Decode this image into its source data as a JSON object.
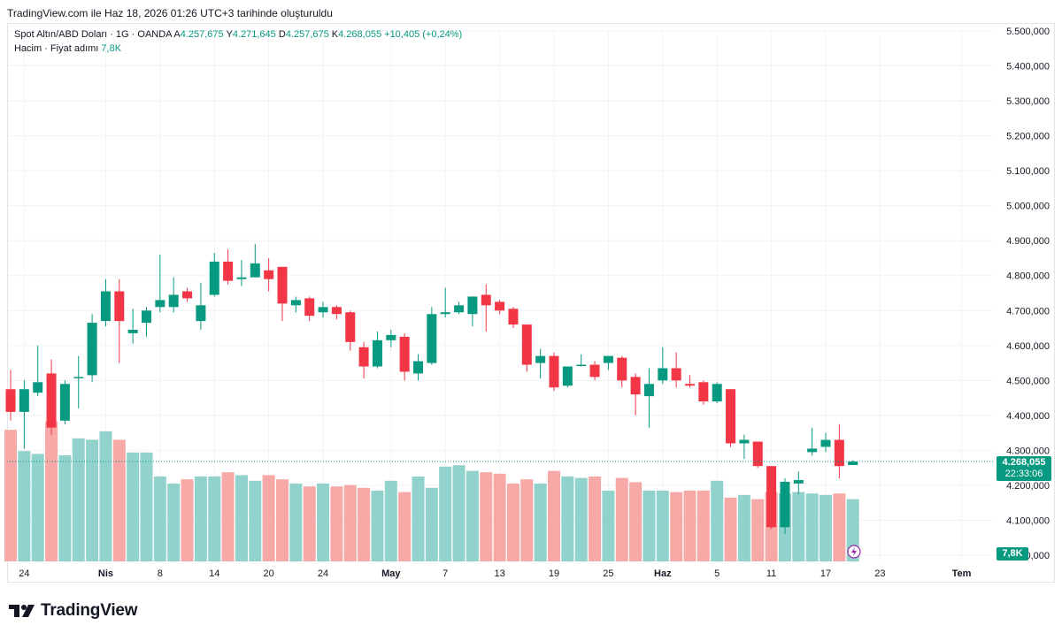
{
  "caption": "TradingView.com ile Haz 18, 2026 01:26 UTC+3 tarihinde oluşturuldu",
  "legend": {
    "symbol": "Spot Altın/ABD Doları · 1G · OANDA",
    "open_label": "A",
    "open": "4.257,675",
    "high_label": "Y",
    "high": "4.271,645",
    "low_label": "D",
    "low": "4.257,675",
    "close_label": "K",
    "close": "4.268,055",
    "change": "+10,405 (+0,24%)",
    "volume_label": "Hacim · Fiyat adımı",
    "volume_value": "7,8K"
  },
  "price_tag": {
    "price": "4.268,055",
    "countdown": "22:33:06"
  },
  "volume_tag": "7,8K",
  "logo_text": "TradingView",
  "colors": {
    "up": "#089981",
    "down": "#f23645",
    "up_volume": "#92d2cc",
    "down_volume": "#f7a9a7",
    "grid": "#f0f3fa"
  },
  "chart_data": {
    "type": "candlestick",
    "y_ticks": [
      "5.500,000",
      "5.400,000",
      "5.300,000",
      "5.200,000",
      "5.100,000",
      "5.000,000",
      "4.900,000",
      "4.800,000",
      "4.700,000",
      "4.600,000",
      "4.500,000",
      "4.400,000",
      "4.300,000",
      "4.200,000",
      "4.100,000",
      "4.000,000"
    ],
    "y_range": [
      4000,
      5500
    ],
    "x_ticks": [
      "24",
      "Nis",
      "8",
      "14",
      "20",
      "24",
      "May",
      "7",
      "13",
      "19",
      "25",
      "Haz",
      "5",
      "11",
      "17",
      "23",
      "Tem"
    ],
    "last_price": 4268.055,
    "candles": [
      {
        "o": 4475,
        "h": 4530,
        "l": 4385,
        "c": 4410
      },
      {
        "o": 4410,
        "h": 4500,
        "l": 4305,
        "c": 4475
      },
      {
        "o": 4465,
        "h": 4600,
        "l": 4455,
        "c": 4495
      },
      {
        "o": 4520,
        "h": 4560,
        "l": 4345,
        "c": 4365
      },
      {
        "o": 4385,
        "h": 4500,
        "l": 4375,
        "c": 4490
      },
      {
        "o": 4510,
        "h": 4570,
        "l": 4420,
        "c": 4510
      },
      {
        "o": 4515,
        "h": 4690,
        "l": 4495,
        "c": 4665
      },
      {
        "o": 4670,
        "h": 4790,
        "l": 4655,
        "c": 4755
      },
      {
        "o": 4755,
        "h": 4790,
        "l": 4550,
        "c": 4670
      },
      {
        "o": 4635,
        "h": 4705,
        "l": 4605,
        "c": 4645
      },
      {
        "o": 4665,
        "h": 4710,
        "l": 4625,
        "c": 4700
      },
      {
        "o": 4710,
        "h": 4860,
        "l": 4695,
        "c": 4730
      },
      {
        "o": 4710,
        "h": 4795,
        "l": 4695,
        "c": 4745
      },
      {
        "o": 4755,
        "h": 4765,
        "l": 4725,
        "c": 4735
      },
      {
        "o": 4670,
        "h": 4780,
        "l": 4645,
        "c": 4715
      },
      {
        "o": 4745,
        "h": 4865,
        "l": 4740,
        "c": 4840
      },
      {
        "o": 4840,
        "h": 4875,
        "l": 4775,
        "c": 4785
      },
      {
        "o": 4790,
        "h": 4845,
        "l": 4770,
        "c": 4795
      },
      {
        "o": 4795,
        "h": 4890,
        "l": 4795,
        "c": 4835
      },
      {
        "o": 4815,
        "h": 4850,
        "l": 4755,
        "c": 4790
      },
      {
        "o": 4825,
        "h": 4825,
        "l": 4670,
        "c": 4720
      },
      {
        "o": 4715,
        "h": 4740,
        "l": 4695,
        "c": 4730
      },
      {
        "o": 4735,
        "h": 4740,
        "l": 4670,
        "c": 4685
      },
      {
        "o": 4695,
        "h": 4725,
        "l": 4680,
        "c": 4710
      },
      {
        "o": 4710,
        "h": 4715,
        "l": 4675,
        "c": 4690
      },
      {
        "o": 4695,
        "h": 4700,
        "l": 4585,
        "c": 4610
      },
      {
        "o": 4595,
        "h": 4610,
        "l": 4505,
        "c": 4540
      },
      {
        "o": 4540,
        "h": 4640,
        "l": 4535,
        "c": 4615
      },
      {
        "o": 4615,
        "h": 4645,
        "l": 4595,
        "c": 4630
      },
      {
        "o": 4625,
        "h": 4635,
        "l": 4500,
        "c": 4525
      },
      {
        "o": 4520,
        "h": 4575,
        "l": 4500,
        "c": 4555
      },
      {
        "o": 4550,
        "h": 4710,
        "l": 4545,
        "c": 4690
      },
      {
        "o": 4690,
        "h": 4765,
        "l": 4680,
        "c": 4695
      },
      {
        "o": 4695,
        "h": 4725,
        "l": 4690,
        "c": 4715
      },
      {
        "o": 4690,
        "h": 4740,
        "l": 4655,
        "c": 4740
      },
      {
        "o": 4745,
        "h": 4775,
        "l": 4640,
        "c": 4715
      },
      {
        "o": 4725,
        "h": 4730,
        "l": 4690,
        "c": 4700
      },
      {
        "o": 4705,
        "h": 4710,
        "l": 4650,
        "c": 4660
      },
      {
        "o": 4660,
        "h": 4660,
        "l": 4525,
        "c": 4545
      },
      {
        "o": 4550,
        "h": 4590,
        "l": 4505,
        "c": 4570
      },
      {
        "o": 4570,
        "h": 4580,
        "l": 4470,
        "c": 4480
      },
      {
        "o": 4485,
        "h": 4540,
        "l": 4480,
        "c": 4540
      },
      {
        "o": 4545,
        "h": 4575,
        "l": 4540,
        "c": 4545
      },
      {
        "o": 4545,
        "h": 4555,
        "l": 4500,
        "c": 4510
      },
      {
        "o": 4550,
        "h": 4570,
        "l": 4530,
        "c": 4570
      },
      {
        "o": 4565,
        "h": 4570,
        "l": 4480,
        "c": 4500
      },
      {
        "o": 4510,
        "h": 4520,
        "l": 4400,
        "c": 4460
      },
      {
        "o": 4455,
        "h": 4535,
        "l": 4365,
        "c": 4490
      },
      {
        "o": 4500,
        "h": 4595,
        "l": 4490,
        "c": 4535
      },
      {
        "o": 4535,
        "h": 4580,
        "l": 4480,
        "c": 4500
      },
      {
        "o": 4490,
        "h": 4515,
        "l": 4480,
        "c": 4485
      },
      {
        "o": 4495,
        "h": 4500,
        "l": 4430,
        "c": 4440
      },
      {
        "o": 4440,
        "h": 4495,
        "l": 4435,
        "c": 4490
      },
      {
        "o": 4475,
        "h": 4475,
        "l": 4310,
        "c": 4320
      },
      {
        "o": 4320,
        "h": 4345,
        "l": 4275,
        "c": 4330
      },
      {
        "o": 4325,
        "h": 4325,
        "l": 4250,
        "c": 4255
      },
      {
        "o": 4255,
        "h": 4255,
        "l": 4075,
        "c": 4080
      },
      {
        "o": 4080,
        "h": 4220,
        "l": 4060,
        "c": 4210
      },
      {
        "o": 4205,
        "h": 4240,
        "l": 4175,
        "c": 4215
      },
      {
        "o": 4295,
        "h": 4365,
        "l": 4285,
        "c": 4305
      },
      {
        "o": 4310,
        "h": 4350,
        "l": 4295,
        "c": 4330
      },
      {
        "o": 4330,
        "h": 4375,
        "l": 4220,
        "c": 4255
      },
      {
        "o": 4258,
        "h": 4272,
        "l": 4258,
        "c": 4268
      }
    ],
    "volumes": [
      93,
      78,
      76,
      99,
      75,
      87,
      86,
      92,
      86,
      77,
      77,
      60,
      55,
      58,
      60,
      60,
      63,
      61,
      57,
      61,
      58,
      55,
      53,
      55,
      53,
      54,
      52,
      50,
      57,
      49,
      60,
      52,
      67,
      68,
      64,
      63,
      62,
      55,
      58,
      55,
      64,
      60,
      59,
      60,
      50,
      59,
      56,
      50,
      50,
      49,
      50,
      50,
      57,
      45,
      47,
      44,
      49,
      48,
      49,
      48,
      47,
      48,
      44
    ]
  }
}
